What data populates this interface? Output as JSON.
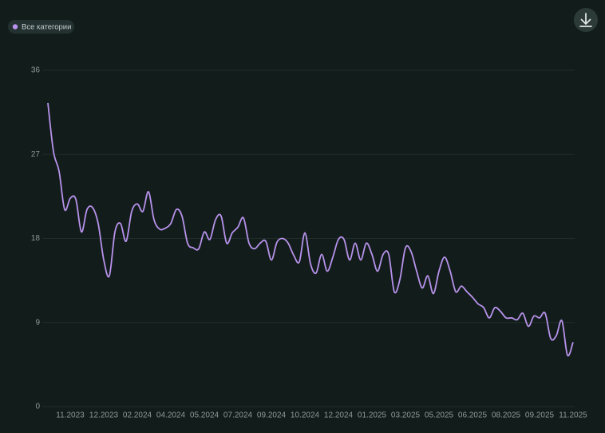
{
  "chart_data": {
    "type": "line",
    "categories": [
      null,
      null,
      null,
      null,
      "11.2023",
      null,
      null,
      null,
      null,
      null,
      "12.2023",
      null,
      null,
      null,
      null,
      null,
      "02.2024",
      null,
      null,
      null,
      null,
      null,
      "04.2024",
      null,
      null,
      null,
      null,
      null,
      "05.2024",
      null,
      null,
      null,
      null,
      null,
      "07.2024",
      null,
      null,
      null,
      null,
      null,
      "09.2024",
      null,
      null,
      null,
      null,
      null,
      "10.2024",
      null,
      null,
      null,
      null,
      null,
      "12.2024",
      null,
      null,
      null,
      null,
      null,
      "01.2025",
      null,
      null,
      null,
      null,
      null,
      "03.2025",
      null,
      null,
      null,
      null,
      null,
      "05.2025",
      null,
      null,
      null,
      null,
      null,
      "06.2025",
      null,
      null,
      null,
      null,
      null,
      "08.2025",
      null,
      null,
      null,
      null,
      null,
      "09.2025",
      null,
      null,
      null,
      null,
      null,
      "11.2025"
    ],
    "series": [
      {
        "name": "Все категории",
        "color": "#b892ec",
        "values": [
          32.5,
          27.3,
          25.2,
          21.1,
          22.3,
          22.2,
          18.7,
          21.1,
          21.3,
          19.6,
          15.7,
          14.0,
          18.7,
          19.6,
          17.7,
          20.9,
          21.7,
          20.9,
          23.0,
          20.0,
          19.0,
          19.1,
          19.6,
          21.1,
          20.4,
          17.5,
          17.0,
          16.9,
          18.7,
          17.9,
          20.0,
          20.4,
          17.5,
          18.6,
          19.2,
          20.2,
          17.5,
          16.9,
          17.5,
          17.7,
          15.7,
          17.6,
          18.0,
          17.5,
          16.2,
          15.5,
          18.6,
          15.3,
          14.3,
          16.3,
          14.5,
          16.0,
          17.9,
          17.9,
          15.7,
          17.5,
          15.7,
          17.5,
          16.3,
          14.5,
          16.3,
          16.3,
          12.3,
          13.6,
          17.0,
          16.6,
          14.5,
          12.7,
          14.0,
          12.1,
          14.5,
          16.0,
          14.5,
          12.3,
          12.9,
          12.3,
          11.7,
          11.0,
          10.6,
          9.5,
          10.6,
          10.2,
          9.5,
          9.5,
          9.3,
          10.0,
          8.6,
          9.7,
          9.5,
          10.0,
          7.3,
          7.6,
          9.2,
          5.5,
          6.9
        ]
      }
    ],
    "ylim": [
      0,
      36
    ],
    "yticks": [
      0,
      9,
      18,
      27,
      36
    ],
    "grid": true
  }
}
